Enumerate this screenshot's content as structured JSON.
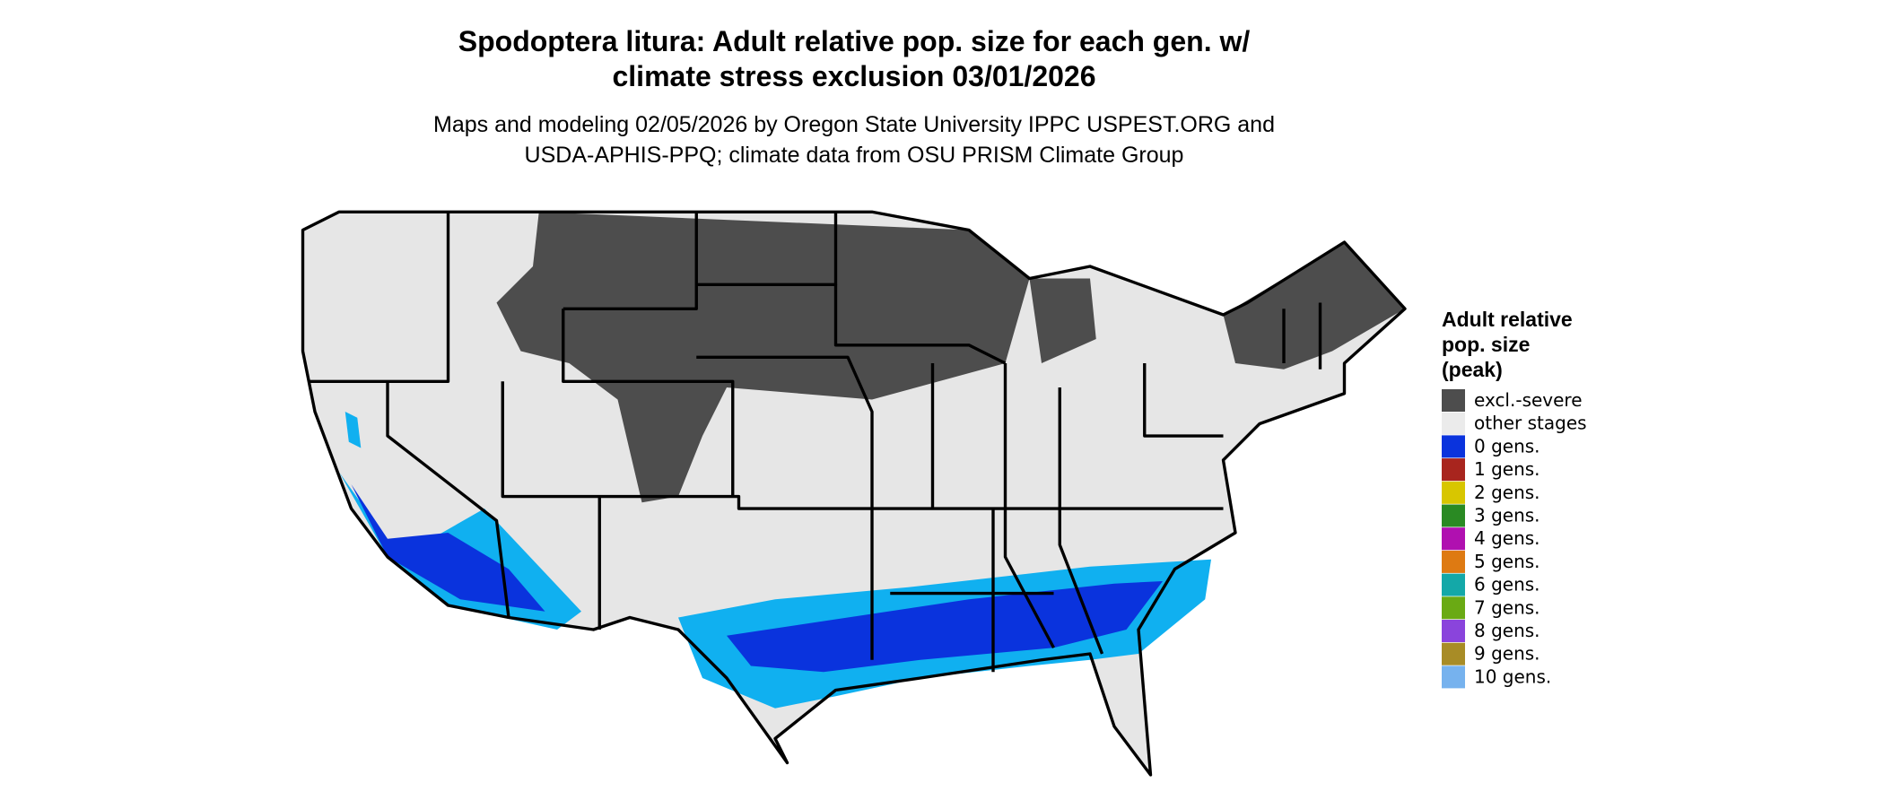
{
  "title": [
    "Spodoptera litura: Adult relative pop. size for each gen. w/",
    "climate stress exclusion 03/01/2026"
  ],
  "subtitle": [
    "Maps and modeling 02/05/2026 by Oregon State University IPPC USPEST.ORG and",
    "USDA-APHIS-PPQ; climate data from OSU PRISM Climate Group"
  ],
  "legend": {
    "title": [
      "Adult relative",
      "pop. size",
      "(peak)"
    ],
    "items": [
      {
        "label": "excl.-severe",
        "color": "#4d4d4d"
      },
      {
        "label": "other stages",
        "color": "#ebebeb"
      },
      {
        "label": "0 gens.",
        "color": "#0a33dd"
      },
      {
        "label": "1 gens.",
        "color": "#a8251e"
      },
      {
        "label": "2 gens.",
        "color": "#d8c600"
      },
      {
        "label": "3 gens.",
        "color": "#2a8a23"
      },
      {
        "label": "4 gens.",
        "color": "#b010b0"
      },
      {
        "label": "5 gens.",
        "color": "#de7a12"
      },
      {
        "label": "6 gens.",
        "color": "#14a8a8"
      },
      {
        "label": "7 gens.",
        "color": "#6aaa14"
      },
      {
        "label": "8 gens.",
        "color": "#8a44dc"
      },
      {
        "label": "9 gens.",
        "color": "#a88c26"
      },
      {
        "label": "10 gens.",
        "color": "#76b2ee"
      }
    ]
  }
}
